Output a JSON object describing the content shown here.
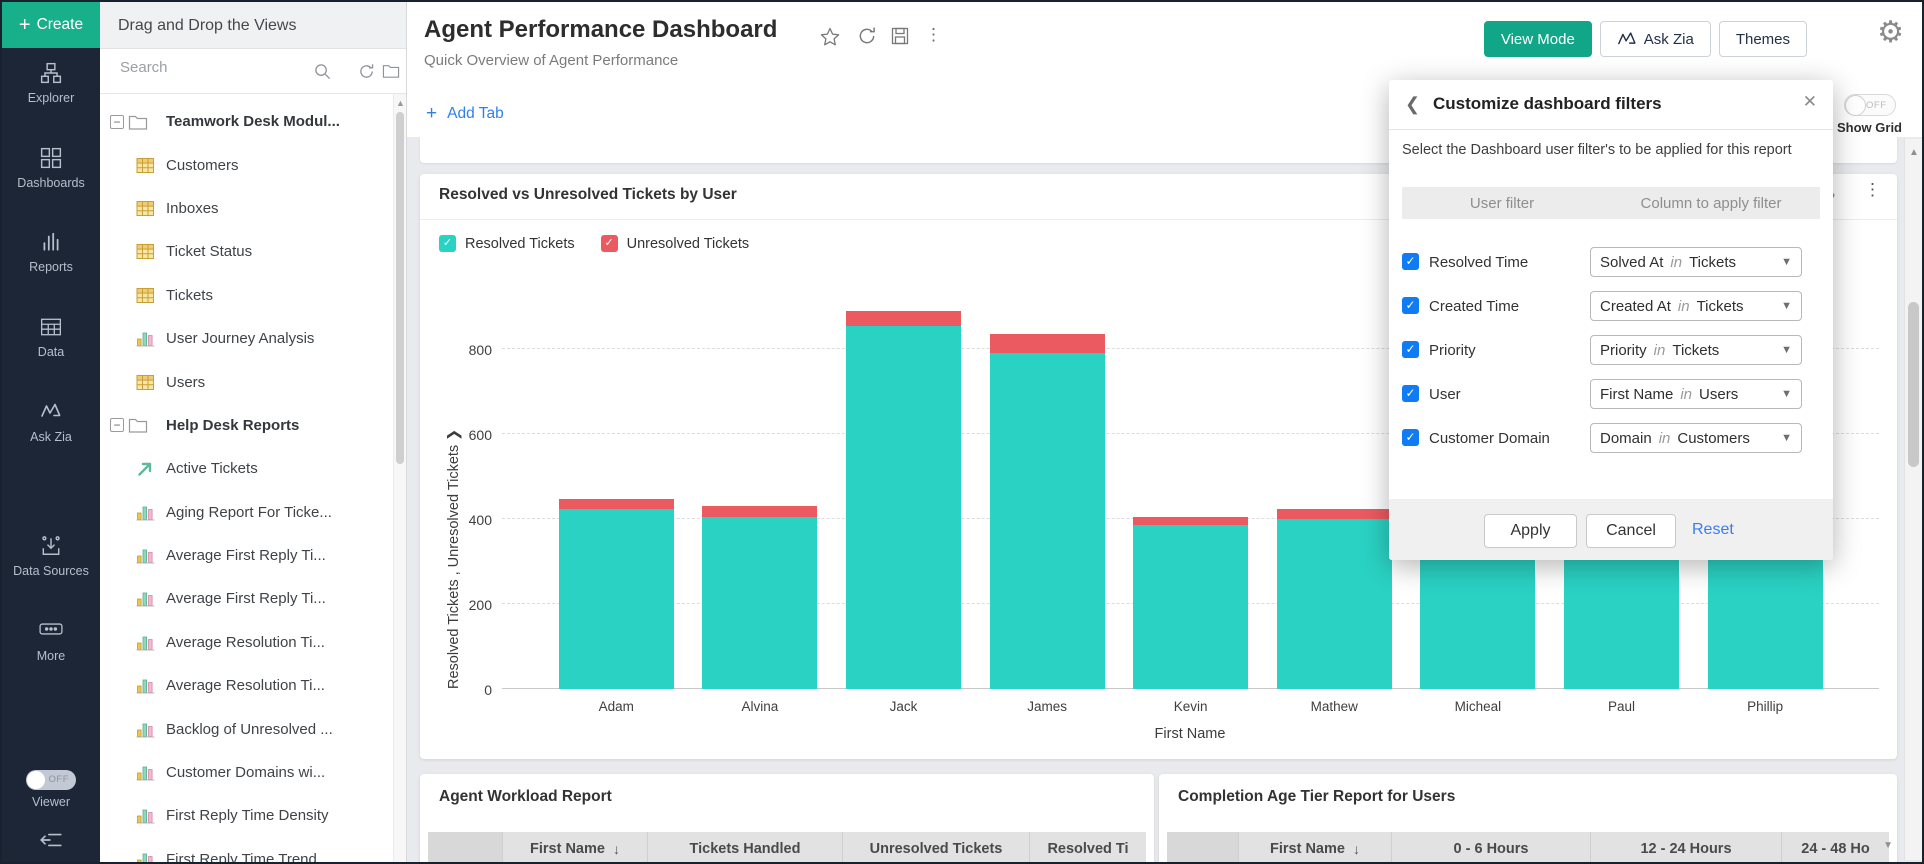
{
  "rail": {
    "create_label": "Create",
    "items": [
      {
        "label": "Explorer",
        "icon": "sitemap-icon"
      },
      {
        "label": "Dashboards",
        "icon": "grid-icon"
      },
      {
        "label": "Reports",
        "icon": "bars-icon"
      },
      {
        "label": "Data",
        "icon": "table-icon"
      },
      {
        "label": "Ask Zia",
        "icon": "zia-icon"
      },
      {
        "label": "Data Sources",
        "icon": "datasource-icon"
      },
      {
        "label": "More",
        "icon": "more-icon"
      }
    ],
    "viewer_label": "Viewer",
    "viewer_state": "OFF"
  },
  "views_panel": {
    "header": "Drag and Drop the Views",
    "search_placeholder": "Search",
    "tree": [
      {
        "type": "folder",
        "label": "Teamwork Desk Modul...",
        "expanded": true
      },
      {
        "type": "table",
        "label": "Customers"
      },
      {
        "type": "table",
        "label": "Inboxes"
      },
      {
        "type": "table",
        "label": "Ticket Status"
      },
      {
        "type": "table",
        "label": "Tickets"
      },
      {
        "type": "chart",
        "label": "User Journey Analysis"
      },
      {
        "type": "table",
        "label": "Users"
      },
      {
        "type": "folder",
        "label": "Help Desk Reports",
        "expanded": true
      },
      {
        "type": "arrow",
        "label": "Active Tickets"
      },
      {
        "type": "chart",
        "label": "Aging Report For Ticke..."
      },
      {
        "type": "chart",
        "label": "Average First Reply Ti..."
      },
      {
        "type": "chart",
        "label": "Average First Reply Ti..."
      },
      {
        "type": "chart",
        "label": "Average Resolution Ti..."
      },
      {
        "type": "chart",
        "label": "Average Resolution Ti..."
      },
      {
        "type": "chart",
        "label": "Backlog of Unresolved ..."
      },
      {
        "type": "chart",
        "label": "Customer Domains wi..."
      },
      {
        "type": "chart",
        "label": "First Reply Time Density"
      },
      {
        "type": "chart",
        "label": "First Reply Time Trend"
      }
    ]
  },
  "header": {
    "title": "Agent Performance Dashboard",
    "subtitle": "Quick Overview of Agent Performance",
    "add_tab_label": "Add Tab",
    "buttons": {
      "view_mode": "View Mode",
      "ask_zia": "Ask Zia",
      "themes": "Themes"
    },
    "show_grid": {
      "label": "Show Grid",
      "state": "OFF"
    }
  },
  "chart_card": {
    "title": "Resolved vs Unresolved Tickets by User"
  },
  "chart_data": {
    "type": "bar",
    "stacked": true,
    "title": "Resolved vs Unresolved Tickets by User",
    "categories": [
      "Adam",
      "Alvina",
      "Jack",
      "James",
      "Kevin",
      "Mathew",
      "Micheal",
      "Paul",
      "Phillip"
    ],
    "series": [
      {
        "name": "Resolved Tickets",
        "color": "#2ad2c3",
        "values": [
          423,
          405,
          855,
          790,
          385,
          400,
          420,
          430,
          440
        ]
      },
      {
        "name": "Unresolved Tickets",
        "color": "#eb5a61",
        "values": [
          25,
          25,
          35,
          45,
          20,
          24,
          25,
          25,
          25
        ]
      }
    ],
    "xlabel": "First Name",
    "ylabel": "Resolved Tickets , Unresolved Tickets",
    "ylim": [
      0,
      910
    ],
    "yticks": [
      0,
      200,
      400,
      600,
      800
    ],
    "grid": "dashed horizontal",
    "legend_position": "top-left",
    "note": "Tops of Micheal, Paul and Phillip bars are occluded by the filter panel; their values are estimated"
  },
  "filter_panel": {
    "title": "Customize dashboard filters",
    "description": "Select the Dashboard user filter's to be applied for this report",
    "col1": "User filter",
    "col2": "Column to apply filter",
    "rows": [
      {
        "label": "Resolved Time",
        "checked": true,
        "value": "Solved At",
        "connector": "in",
        "source": "Tickets"
      },
      {
        "label": "Created Time",
        "checked": true,
        "value": "Created At",
        "connector": "in",
        "source": "Tickets"
      },
      {
        "label": "Priority",
        "checked": true,
        "value": "Priority",
        "connector": "in",
        "source": "Tickets"
      },
      {
        "label": "User",
        "checked": true,
        "value": "First Name",
        "connector": "in",
        "source": "Users"
      },
      {
        "label": "Customer Domain",
        "checked": true,
        "value": "Domain",
        "connector": "in",
        "source": "Customers"
      }
    ],
    "apply_label": "Apply",
    "cancel_label": "Cancel",
    "reset_label": "Reset"
  },
  "workload_card": {
    "title": "Agent Workload Report",
    "columns": [
      {
        "label": "",
        "gutter": true
      },
      {
        "label": "First Name",
        "sorted": true
      },
      {
        "label": "Tickets Handled"
      },
      {
        "label": "Unresolved Tickets"
      },
      {
        "label": "Resolved Ti"
      }
    ]
  },
  "completion_card": {
    "title": "Completion Age Tier Report for Users",
    "columns": [
      {
        "label": "",
        "gutter": true
      },
      {
        "label": "First Name",
        "sorted": true
      },
      {
        "label": "0 - 6 Hours"
      },
      {
        "label": "12 - 24 Hours"
      },
      {
        "label": "24 - 48 Ho"
      }
    ]
  }
}
